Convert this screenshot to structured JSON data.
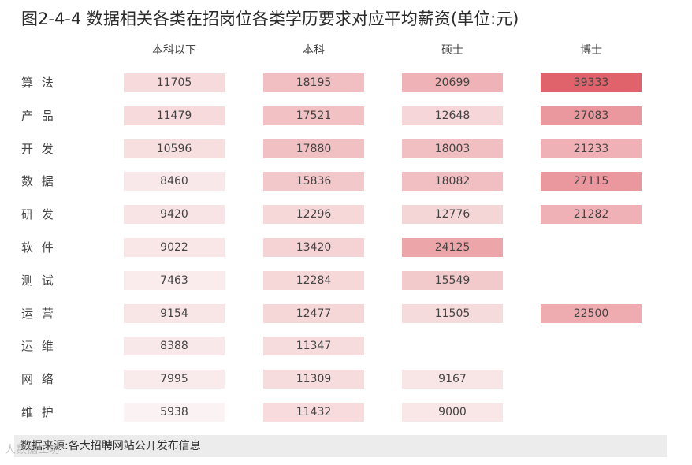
{
  "chart_data": {
    "type": "heatmap",
    "title": "图2-4-4 数据相关各类在招岗位各类学历要求对应平均薪资(单位:元)",
    "columns": [
      "本科以下",
      "本科",
      "硕士",
      "博士"
    ],
    "rows": [
      "算 法",
      "产 品",
      "开 发",
      "数 据",
      "研 发",
      "软 件",
      "测 试",
      "运 营",
      "运 维",
      "网 络",
      "维 护"
    ],
    "values": [
      [
        11705,
        18195,
        20699,
        39333
      ],
      [
        11479,
        17521,
        12648,
        27083
      ],
      [
        10596,
        17880,
        18003,
        21233
      ],
      [
        8460,
        15836,
        18082,
        27115
      ],
      [
        9420,
        12296,
        12776,
        21282
      ],
      [
        9022,
        13420,
        24125,
        null
      ],
      [
        7463,
        12284,
        15549,
        null
      ],
      [
        9154,
        12477,
        11505,
        22500
      ],
      [
        8388,
        11347,
        null,
        null
      ],
      [
        7995,
        11309,
        9167,
        null
      ],
      [
        5938,
        11432,
        9000,
        null
      ]
    ],
    "color_min": "#fbf3f3",
    "color_max": "#e0636b",
    "value_range": [
      5938,
      39333
    ]
  },
  "footer": {
    "source": "数据来源:各大招聘网站公开发布信息",
    "watermark": "人数据工坊"
  },
  "colors": {
    "footer_bg": "#ececec"
  }
}
